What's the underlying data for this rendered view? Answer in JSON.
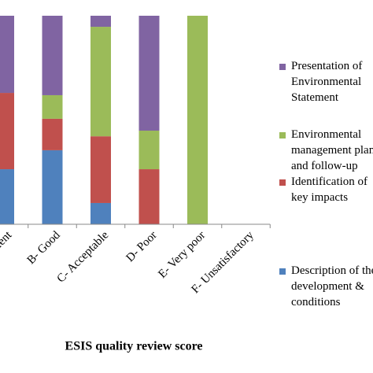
{
  "chart_data": {
    "type": "stacked_bar",
    "x_label": "ESIS quality review score",
    "categories": [
      "A- Excellent",
      "B- Good",
      "C- Acceptable",
      "D- Poor",
      "E- Very poor",
      "F- Unsatisfactory"
    ],
    "ylim": [
      0,
      100
    ],
    "series": [
      {
        "name": "Description of the development & conditions",
        "color": "#4f81bd",
        "values": [
          26.4,
          35.5,
          10.2,
          0,
          0,
          0
        ]
      },
      {
        "name": "Identification of key impacts",
        "color": "#c0504d",
        "values": [
          36.6,
          15.1,
          32,
          26.4,
          0,
          0
        ]
      },
      {
        "name": "Environmental management plan and follow-up",
        "color": "#9bbb59",
        "values": [
          0,
          11.3,
          52.5,
          18.5,
          100,
          0
        ]
      },
      {
        "name": "Presentation of Environmental Statement",
        "color": "#8064a2",
        "values": [
          37,
          38.1,
          5.3,
          55.1,
          0,
          0
        ]
      }
    ]
  }
}
